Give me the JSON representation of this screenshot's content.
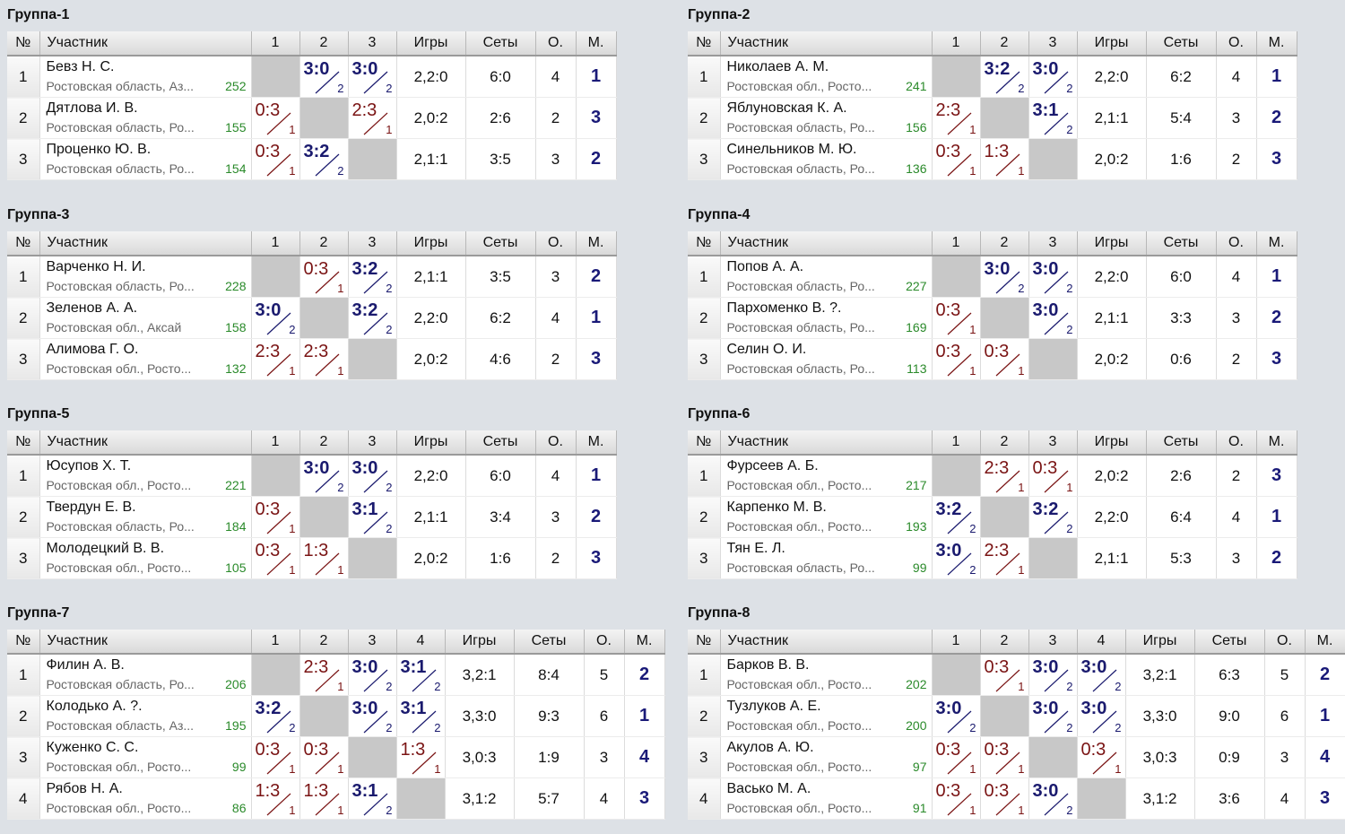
{
  "headers": {
    "num": "№",
    "name": "Участник",
    "games": "Игры",
    "sets": "Сеты",
    "points": "О.",
    "place": "М."
  },
  "groups": [
    {
      "title": "Группа-1",
      "cols": [
        "1",
        "2",
        "3"
      ],
      "rows": [
        {
          "num": "1",
          "name": "Бевз Н. С.",
          "region": "Ростовская область, Аз...",
          "rating": "252",
          "scores": [
            null,
            {
              "s": "3:0",
              "d": "2",
              "r": "w"
            },
            {
              "s": "3:0",
              "d": "2",
              "r": "w"
            }
          ],
          "games": "2,2:0",
          "sets": "6:0",
          "points": "4",
          "place": "1"
        },
        {
          "num": "2",
          "name": "Дятлова И. В.",
          "region": "Ростовская область, Ро...",
          "rating": "155",
          "scores": [
            {
              "s": "0:3",
              "d": "1",
              "r": "l"
            },
            null,
            {
              "s": "2:3",
              "d": "1",
              "r": "l"
            }
          ],
          "games": "2,0:2",
          "sets": "2:6",
          "points": "2",
          "place": "3"
        },
        {
          "num": "3",
          "name": "Проценко Ю. В.",
          "region": "Ростовская область, Ро...",
          "rating": "154",
          "scores": [
            {
              "s": "0:3",
              "d": "1",
              "r": "l"
            },
            {
              "s": "3:2",
              "d": "2",
              "r": "w"
            },
            null
          ],
          "games": "2,1:1",
          "sets": "3:5",
          "points": "3",
          "place": "2"
        }
      ]
    },
    {
      "title": "Группа-2",
      "cols": [
        "1",
        "2",
        "3"
      ],
      "rows": [
        {
          "num": "1",
          "name": "Николаев А. М.",
          "region": "Ростовская обл., Росто...",
          "rating": "241",
          "scores": [
            null,
            {
              "s": "3:2",
              "d": "2",
              "r": "w"
            },
            {
              "s": "3:0",
              "d": "2",
              "r": "w"
            }
          ],
          "games": "2,2:0",
          "sets": "6:2",
          "points": "4",
          "place": "1"
        },
        {
          "num": "2",
          "name": "Яблуновская К. А.",
          "region": "Ростовская область, Ро...",
          "rating": "156",
          "scores": [
            {
              "s": "2:3",
              "d": "1",
              "r": "l"
            },
            null,
            {
              "s": "3:1",
              "d": "2",
              "r": "w"
            }
          ],
          "games": "2,1:1",
          "sets": "5:4",
          "points": "3",
          "place": "2"
        },
        {
          "num": "3",
          "name": "Синельников М. Ю.",
          "region": "Ростовская область, Ро...",
          "rating": "136",
          "scores": [
            {
              "s": "0:3",
              "d": "1",
              "r": "l"
            },
            {
              "s": "1:3",
              "d": "1",
              "r": "l"
            },
            null
          ],
          "games": "2,0:2",
          "sets": "1:6",
          "points": "2",
          "place": "3"
        }
      ]
    },
    {
      "title": "Группа-3",
      "cols": [
        "1",
        "2",
        "3"
      ],
      "rows": [
        {
          "num": "1",
          "name": "Варченко Н. И.",
          "region": "Ростовская область, Ро...",
          "rating": "228",
          "scores": [
            null,
            {
              "s": "0:3",
              "d": "1",
              "r": "l"
            },
            {
              "s": "3:2",
              "d": "2",
              "r": "w"
            }
          ],
          "games": "2,1:1",
          "sets": "3:5",
          "points": "3",
          "place": "2"
        },
        {
          "num": "2",
          "name": "Зеленов А. А.",
          "region": "Ростовская обл., Аксай",
          "rating": "158",
          "scores": [
            {
              "s": "3:0",
              "d": "2",
              "r": "w"
            },
            null,
            {
              "s": "3:2",
              "d": "2",
              "r": "w"
            }
          ],
          "games": "2,2:0",
          "sets": "6:2",
          "points": "4",
          "place": "1"
        },
        {
          "num": "3",
          "name": "Алимова Г. О.",
          "region": "Ростовская обл., Росто...",
          "rating": "132",
          "scores": [
            {
              "s": "2:3",
              "d": "1",
              "r": "l"
            },
            {
              "s": "2:3",
              "d": "1",
              "r": "l"
            },
            null
          ],
          "games": "2,0:2",
          "sets": "4:6",
          "points": "2",
          "place": "3"
        }
      ]
    },
    {
      "title": "Группа-4",
      "cols": [
        "1",
        "2",
        "3"
      ],
      "rows": [
        {
          "num": "1",
          "name": "Попов А. А.",
          "region": "Ростовская область, Ро...",
          "rating": "227",
          "scores": [
            null,
            {
              "s": "3:0",
              "d": "2",
              "r": "w"
            },
            {
              "s": "3:0",
              "d": "2",
              "r": "w"
            }
          ],
          "games": "2,2:0",
          "sets": "6:0",
          "points": "4",
          "place": "1"
        },
        {
          "num": "2",
          "name": "Пархоменко В. ?.",
          "region": "Ростовская область, Ро...",
          "rating": "169",
          "scores": [
            {
              "s": "0:3",
              "d": "1",
              "r": "l"
            },
            null,
            {
              "s": "3:0",
              "d": "2",
              "r": "w"
            }
          ],
          "games": "2,1:1",
          "sets": "3:3",
          "points": "3",
          "place": "2"
        },
        {
          "num": "3",
          "name": "Селин О. И.",
          "region": "Ростовская область, Ро...",
          "rating": "113",
          "scores": [
            {
              "s": "0:3",
              "d": "1",
              "r": "l"
            },
            {
              "s": "0:3",
              "d": "1",
              "r": "l"
            },
            null
          ],
          "games": "2,0:2",
          "sets": "0:6",
          "points": "2",
          "place": "3"
        }
      ]
    },
    {
      "title": "Группа-5",
      "cols": [
        "1",
        "2",
        "3"
      ],
      "rows": [
        {
          "num": "1",
          "name": "Юсупов Х. Т.",
          "region": "Ростовская обл., Росто...",
          "rating": "221",
          "scores": [
            null,
            {
              "s": "3:0",
              "d": "2",
              "r": "w"
            },
            {
              "s": "3:0",
              "d": "2",
              "r": "w"
            }
          ],
          "games": "2,2:0",
          "sets": "6:0",
          "points": "4",
          "place": "1"
        },
        {
          "num": "2",
          "name": "Твердун Е. В.",
          "region": "Ростовская область, Ро...",
          "rating": "184",
          "scores": [
            {
              "s": "0:3",
              "d": "1",
              "r": "l"
            },
            null,
            {
              "s": "3:1",
              "d": "2",
              "r": "w"
            }
          ],
          "games": "2,1:1",
          "sets": "3:4",
          "points": "3",
          "place": "2"
        },
        {
          "num": "3",
          "name": "Молодецкий В. В.",
          "region": "Ростовская обл., Росто...",
          "rating": "105",
          "scores": [
            {
              "s": "0:3",
              "d": "1",
              "r": "l"
            },
            {
              "s": "1:3",
              "d": "1",
              "r": "l"
            },
            null
          ],
          "games": "2,0:2",
          "sets": "1:6",
          "points": "2",
          "place": "3"
        }
      ]
    },
    {
      "title": "Группа-6",
      "cols": [
        "1",
        "2",
        "3"
      ],
      "rows": [
        {
          "num": "1",
          "name": "Фурсеев А. Б.",
          "region": "Ростовская обл., Росто...",
          "rating": "217",
          "scores": [
            null,
            {
              "s": "2:3",
              "d": "1",
              "r": "l"
            },
            {
              "s": "0:3",
              "d": "1",
              "r": "l"
            }
          ],
          "games": "2,0:2",
          "sets": "2:6",
          "points": "2",
          "place": "3"
        },
        {
          "num": "2",
          "name": "Карпенко М. В.",
          "region": "Ростовская обл., Росто...",
          "rating": "193",
          "scores": [
            {
              "s": "3:2",
              "d": "2",
              "r": "w"
            },
            null,
            {
              "s": "3:2",
              "d": "2",
              "r": "w"
            }
          ],
          "games": "2,2:0",
          "sets": "6:4",
          "points": "4",
          "place": "1"
        },
        {
          "num": "3",
          "name": "Тян Е. Л.",
          "region": "Ростовская область, Ро...",
          "rating": "99",
          "scores": [
            {
              "s": "3:0",
              "d": "2",
              "r": "w"
            },
            {
              "s": "2:3",
              "d": "1",
              "r": "l"
            },
            null
          ],
          "games": "2,1:1",
          "sets": "5:3",
          "points": "3",
          "place": "2"
        }
      ]
    },
    {
      "title": "Группа-7",
      "cols": [
        "1",
        "2",
        "3",
        "4"
      ],
      "rows": [
        {
          "num": "1",
          "name": "Филин А. В.",
          "region": "Ростовская область, Ро...",
          "rating": "206",
          "scores": [
            null,
            {
              "s": "2:3",
              "d": "1",
              "r": "l"
            },
            {
              "s": "3:0",
              "d": "2",
              "r": "w"
            },
            {
              "s": "3:1",
              "d": "2",
              "r": "w"
            }
          ],
          "games": "3,2:1",
          "sets": "8:4",
          "points": "5",
          "place": "2"
        },
        {
          "num": "2",
          "name": "Колодько А. ?.",
          "region": "Ростовская область, Аз...",
          "rating": "195",
          "scores": [
            {
              "s": "3:2",
              "d": "2",
              "r": "w"
            },
            null,
            {
              "s": "3:0",
              "d": "2",
              "r": "w"
            },
            {
              "s": "3:1",
              "d": "2",
              "r": "w"
            }
          ],
          "games": "3,3:0",
          "sets": "9:3",
          "points": "6",
          "place": "1"
        },
        {
          "num": "3",
          "name": "Куженко С. С.",
          "region": "Ростовская обл., Росто...",
          "rating": "99",
          "scores": [
            {
              "s": "0:3",
              "d": "1",
              "r": "l"
            },
            {
              "s": "0:3",
              "d": "1",
              "r": "l"
            },
            null,
            {
              "s": "1:3",
              "d": "1",
              "r": "l"
            }
          ],
          "games": "3,0:3",
          "sets": "1:9",
          "points": "3",
          "place": "4"
        },
        {
          "num": "4",
          "name": "Рябов Н. А.",
          "region": "Ростовская обл., Росто...",
          "rating": "86",
          "scores": [
            {
              "s": "1:3",
              "d": "1",
              "r": "l"
            },
            {
              "s": "1:3",
              "d": "1",
              "r": "l"
            },
            {
              "s": "3:1",
              "d": "2",
              "r": "w"
            },
            null
          ],
          "games": "3,1:2",
          "sets": "5:7",
          "points": "4",
          "place": "3"
        }
      ]
    },
    {
      "title": "Группа-8",
      "cols": [
        "1",
        "2",
        "3",
        "4"
      ],
      "rows": [
        {
          "num": "1",
          "name": "Барков В. В.",
          "region": "Ростовская обл., Росто...",
          "rating": "202",
          "scores": [
            null,
            {
              "s": "0:3",
              "d": "1",
              "r": "l"
            },
            {
              "s": "3:0",
              "d": "2",
              "r": "w"
            },
            {
              "s": "3:0",
              "d": "2",
              "r": "w"
            }
          ],
          "games": "3,2:1",
          "sets": "6:3",
          "points": "5",
          "place": "2"
        },
        {
          "num": "2",
          "name": "Тузлуков А. Е.",
          "region": "Ростовская обл., Росто...",
          "rating": "200",
          "scores": [
            {
              "s": "3:0",
              "d": "2",
              "r": "w"
            },
            null,
            {
              "s": "3:0",
              "d": "2",
              "r": "w"
            },
            {
              "s": "3:0",
              "d": "2",
              "r": "w"
            }
          ],
          "games": "3,3:0",
          "sets": "9:0",
          "points": "6",
          "place": "1"
        },
        {
          "num": "3",
          "name": "Акулов А. Ю.",
          "region": "Ростовская обл., Росто...",
          "rating": "97",
          "scores": [
            {
              "s": "0:3",
              "d": "1",
              "r": "l"
            },
            {
              "s": "0:3",
              "d": "1",
              "r": "l"
            },
            null,
            {
              "s": "0:3",
              "d": "1",
              "r": "l"
            }
          ],
          "games": "3,0:3",
          "sets": "0:9",
          "points": "3",
          "place": "4"
        },
        {
          "num": "4",
          "name": "Васько М. А.",
          "region": "Ростовская обл., Росто...",
          "rating": "91",
          "scores": [
            {
              "s": "0:3",
              "d": "1",
              "r": "l"
            },
            {
              "s": "0:3",
              "d": "1",
              "r": "l"
            },
            {
              "s": "3:0",
              "d": "2",
              "r": "w"
            },
            null
          ],
          "games": "3,1:2",
          "sets": "3:6",
          "points": "4",
          "place": "3"
        }
      ]
    }
  ]
}
